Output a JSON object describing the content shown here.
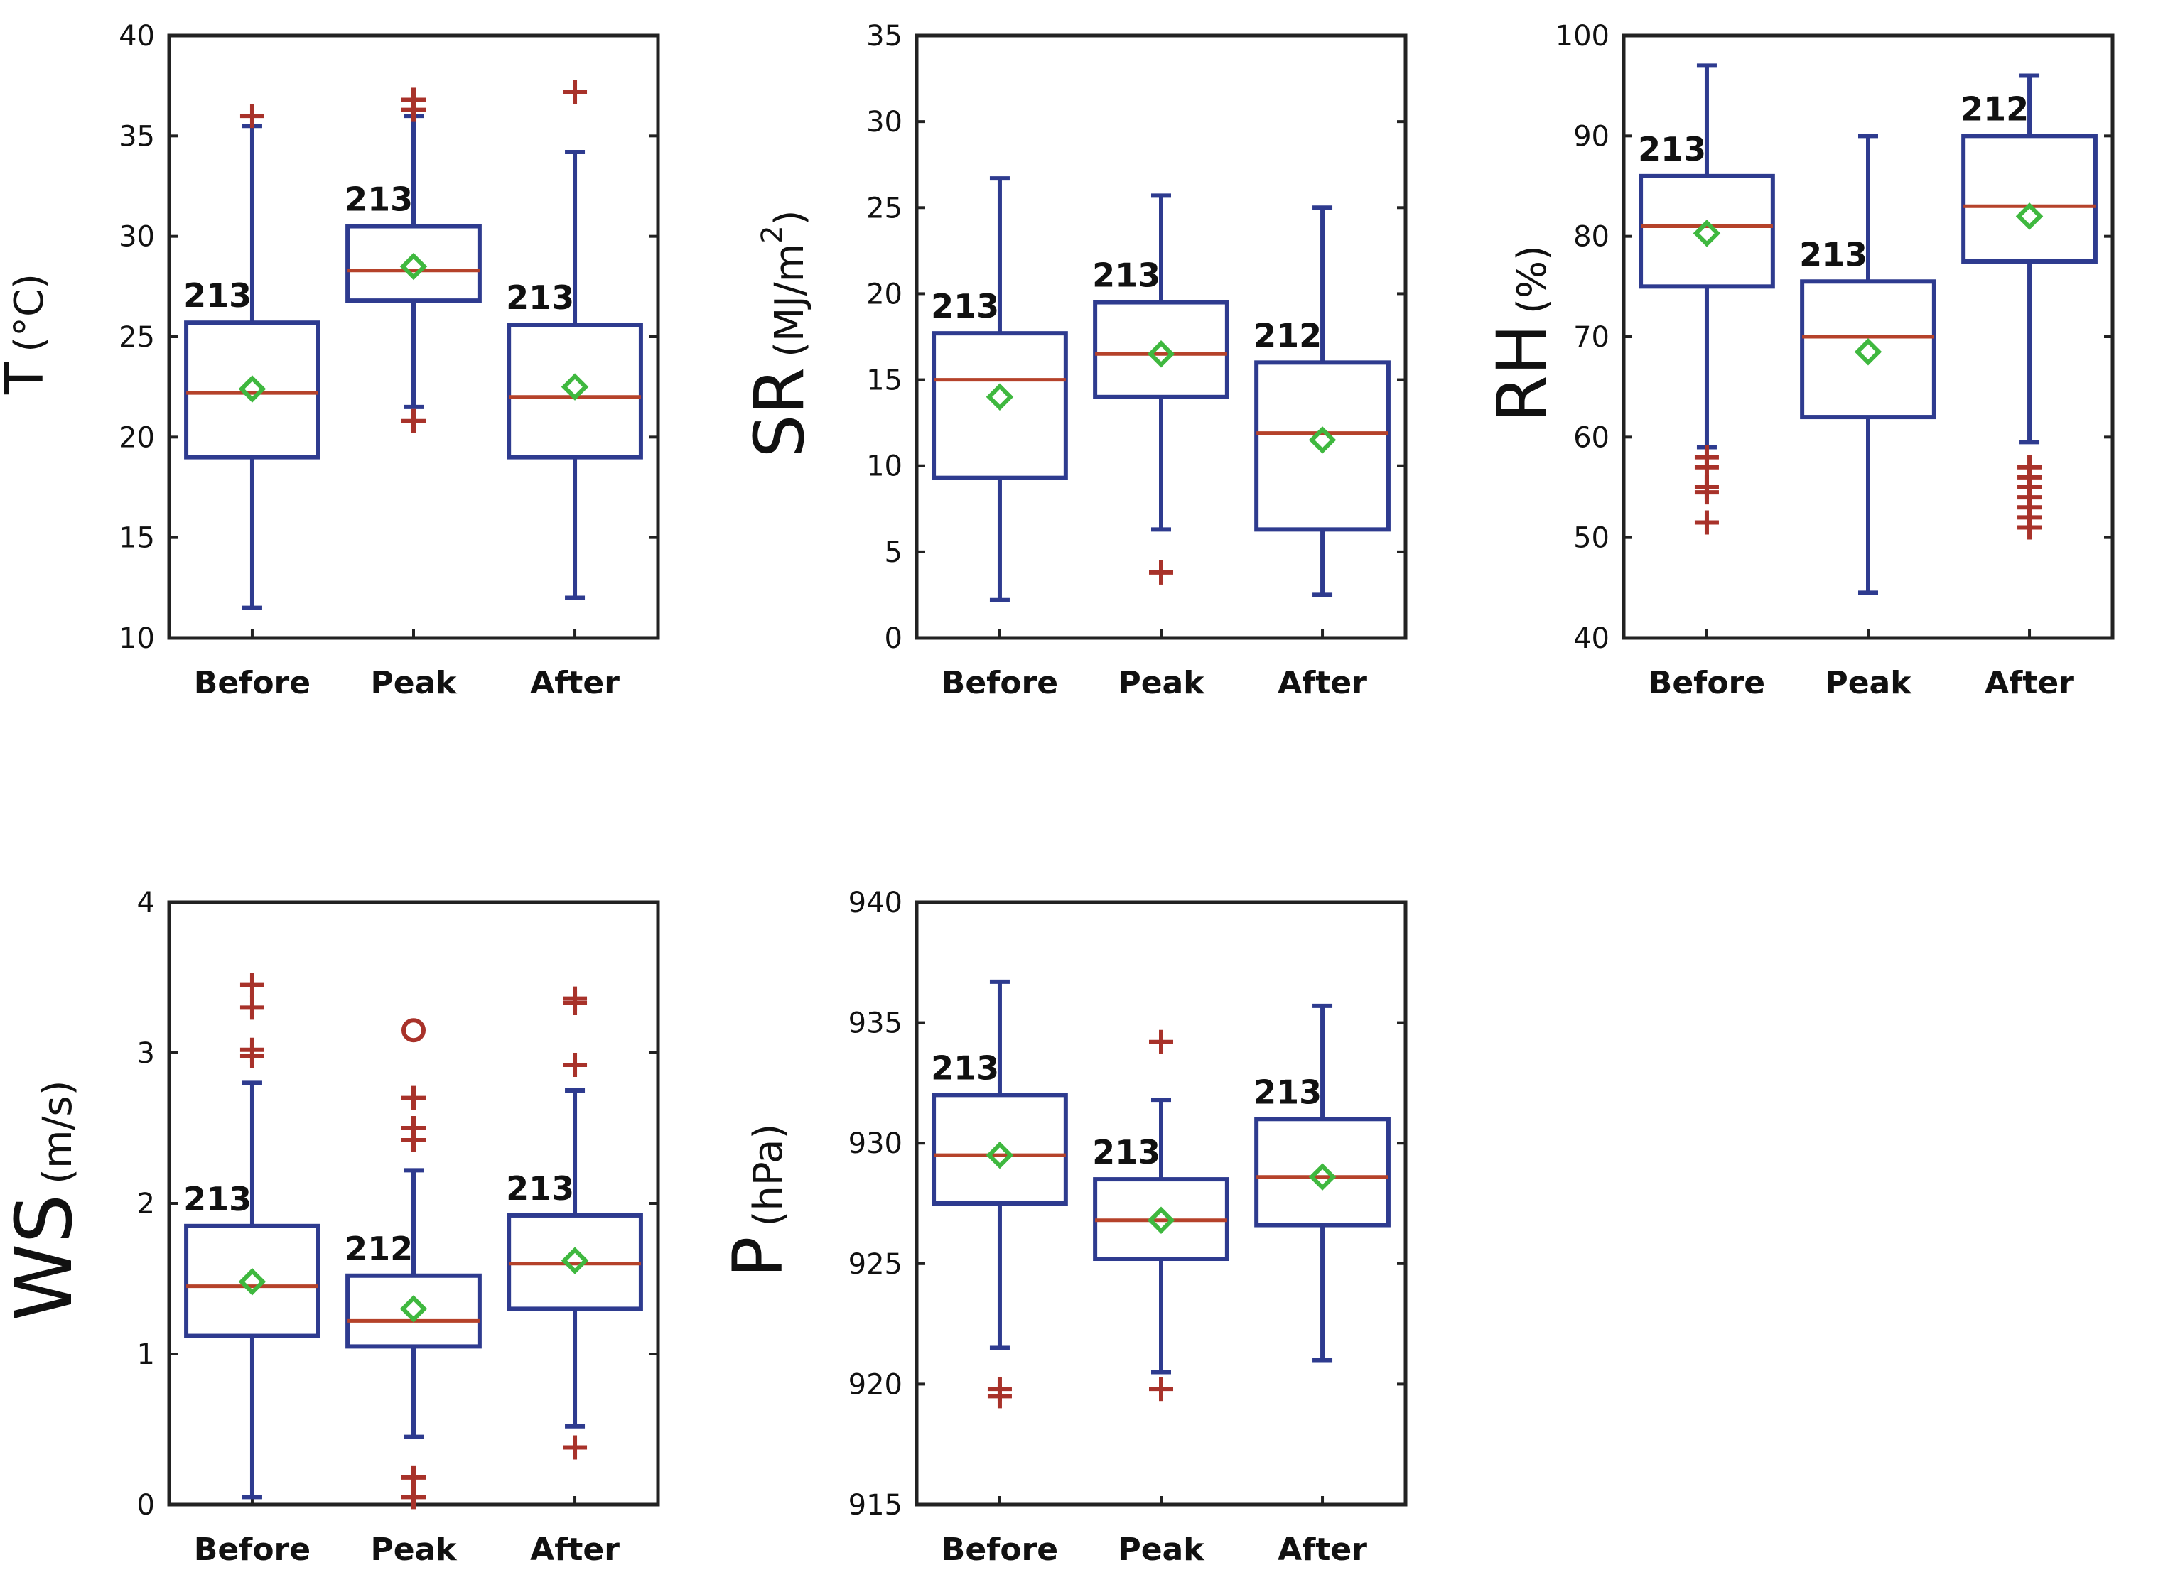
{
  "colors": {
    "box": "#2e3b8f",
    "median": "#b5422a",
    "mean": "#3fb83f",
    "outlier": "#a8322a",
    "axis": "#222222"
  },
  "chart_data": [
    {
      "id": "T",
      "type": "box",
      "ylabel_main": "T",
      "ylabel_unit": "(°C)",
      "ylim": [
        10,
        40
      ],
      "yticks": [
        10,
        15,
        20,
        25,
        30,
        35,
        40
      ],
      "categories": [
        "Before",
        "Peak",
        "After"
      ],
      "boxes": [
        {
          "category": "Before",
          "whisker_low": 11.5,
          "q1": 19,
          "median": 22.2,
          "q3": 25.7,
          "whisker_high": 35.5,
          "mean": 22.4,
          "n": "213",
          "outliers": [
            36
          ]
        },
        {
          "category": "Peak",
          "whisker_low": 21.5,
          "q1": 26.8,
          "median": 28.3,
          "q3": 30.5,
          "whisker_high": 36,
          "mean": 28.5,
          "n": "213",
          "outliers": [
            20.8,
            36.3,
            36.8
          ]
        },
        {
          "category": "After",
          "whisker_low": 12,
          "q1": 19,
          "median": 22,
          "q3": 25.6,
          "whisker_high": 34.2,
          "mean": 22.5,
          "n": "213",
          "outliers": [
            37.2
          ]
        }
      ]
    },
    {
      "id": "SR",
      "type": "box",
      "ylabel_main": "SR",
      "ylabel_unit": "(MJ/m",
      "ylabel_sup": "2",
      "ylabel_close": ")",
      "ylim": [
        0,
        35
      ],
      "yticks": [
        0,
        5,
        10,
        15,
        20,
        25,
        30,
        35
      ],
      "categories": [
        "Before",
        "Peak",
        "After"
      ],
      "boxes": [
        {
          "category": "Before",
          "whisker_low": 2.2,
          "q1": 9.3,
          "median": 15,
          "q3": 17.7,
          "whisker_high": 26.7,
          "mean": 14,
          "n": "213",
          "outliers": []
        },
        {
          "category": "Peak",
          "whisker_low": 6.3,
          "q1": 14,
          "median": 16.5,
          "q3": 19.5,
          "whisker_high": 25.7,
          "mean": 16.5,
          "n": "213",
          "outliers": [
            3.8
          ]
        },
        {
          "category": "After",
          "whisker_low": 2.5,
          "q1": 6.3,
          "median": 11.9,
          "q3": 16,
          "whisker_high": 25,
          "mean": 11.5,
          "n": "212",
          "outliers": []
        }
      ]
    },
    {
      "id": "RH",
      "type": "box",
      "ylabel_main": "RH",
      "ylabel_unit": "(%)",
      "ylim": [
        40,
        100
      ],
      "yticks": [
        40,
        50,
        60,
        70,
        80,
        90,
        100
      ],
      "categories": [
        "Before",
        "Peak",
        "After"
      ],
      "boxes": [
        {
          "category": "Before",
          "whisker_low": 59,
          "q1": 75,
          "median": 81,
          "q3": 86,
          "whisker_high": 97,
          "mean": 80.3,
          "n": "213",
          "outliers": [
            51.5,
            54.5,
            55,
            57,
            58
          ]
        },
        {
          "category": "Peak",
          "whisker_low": 44.5,
          "q1": 62,
          "median": 70,
          "q3": 75.5,
          "whisker_high": 90,
          "mean": 68.5,
          "n": "213",
          "outliers": []
        },
        {
          "category": "After",
          "whisker_low": 59.5,
          "q1": 77.5,
          "median": 83,
          "q3": 90,
          "whisker_high": 96,
          "mean": 82,
          "n": "212",
          "outliers": [
            51,
            52,
            53,
            54,
            55,
            56,
            57
          ]
        }
      ]
    },
    {
      "id": "WS",
      "type": "box",
      "ylabel_main": "WS",
      "ylabel_unit": "(m/s)",
      "ylim": [
        0,
        4
      ],
      "yticks": [
        0,
        1,
        2,
        3,
        4
      ],
      "categories": [
        "Before",
        "Peak",
        "After"
      ],
      "boxes": [
        {
          "category": "Before",
          "whisker_low": 0.05,
          "q1": 1.12,
          "median": 1.45,
          "q3": 1.85,
          "whisker_high": 2.8,
          "mean": 1.48,
          "n": "213",
          "outliers": [
            2.98,
            3.02,
            3.3,
            3.45
          ]
        },
        {
          "category": "Peak",
          "whisker_low": 0.45,
          "q1": 1.05,
          "median": 1.22,
          "q3": 1.52,
          "whisker_high": 2.22,
          "mean": 1.3,
          "n": "212",
          "outliers": [
            0.05,
            0.18,
            2.42,
            2.5,
            2.7
          ]
        },
        {
          "category": "After",
          "whisker_low": 0.52,
          "q1": 1.3,
          "median": 1.6,
          "q3": 1.92,
          "whisker_high": 2.75,
          "mean": 1.62,
          "n": "213",
          "outliers": [
            0.38,
            2.92,
            3.33,
            3.36
          ]
        }
      ],
      "circle_outliers": [
        {
          "category": "Peak",
          "value": 3.15
        }
      ]
    },
    {
      "id": "P",
      "type": "box",
      "ylabel_main": "P",
      "ylabel_unit": "(hPa)",
      "ylim": [
        915,
        940
      ],
      "yticks": [
        915,
        920,
        925,
        930,
        935,
        940
      ],
      "categories": [
        "Before",
        "Peak",
        "After"
      ],
      "boxes": [
        {
          "category": "Before",
          "whisker_low": 921.5,
          "q1": 927.5,
          "median": 929.5,
          "q3": 932,
          "whisker_high": 936.7,
          "mean": 929.5,
          "n": "213",
          "outliers": [
            919.5,
            919.8
          ]
        },
        {
          "category": "Peak",
          "whisker_low": 920.5,
          "q1": 925.2,
          "median": 926.8,
          "q3": 928.5,
          "whisker_high": 931.8,
          "mean": 926.8,
          "n": "213",
          "outliers": [
            919.8,
            934.2
          ]
        },
        {
          "category": "After",
          "whisker_low": 921,
          "q1": 926.6,
          "median": 928.6,
          "q3": 931,
          "whisker_high": 935.7,
          "mean": 928.6,
          "n": "213",
          "outliers": []
        }
      ]
    }
  ]
}
